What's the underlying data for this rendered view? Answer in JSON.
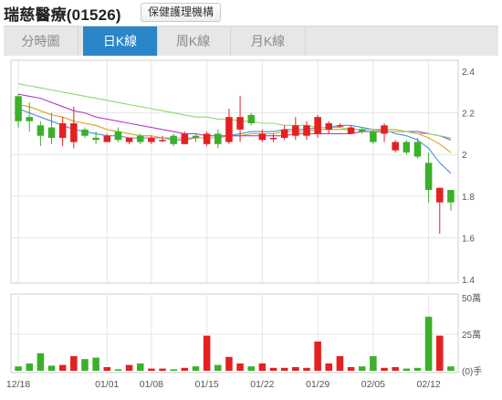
{
  "header": {
    "title": "瑞慈醫療(01526)",
    "tag_label": "保健護理機構"
  },
  "tabs": [
    {
      "label": "分時圖",
      "active": false
    },
    {
      "label": "日K線",
      "active": true
    },
    {
      "label": "周K線",
      "active": false
    },
    {
      "label": "月K線",
      "active": false
    }
  ],
  "colors": {
    "up": "#e52020",
    "down": "#3bb02a",
    "ma5": "#4a8fe0",
    "ma10": "#e0a020",
    "ma20": "#b040d0",
    "ma60": "#8fd86a",
    "grid": "#e4e4e4",
    "frame": "#cfcfcf",
    "axis_text": "#555555"
  },
  "chart_data": [
    {
      "type": "candlestick",
      "ylim": [
        1.4,
        2.4
      ],
      "y_ticks": [
        "2.4",
        "2.2",
        "2",
        "1.8",
        "1.6",
        "1.4"
      ],
      "x_tick_labels": [
        {
          "label": "12/18",
          "index": 0
        },
        {
          "label": "01/01",
          "index": 8
        },
        {
          "label": "01/08",
          "index": 12
        },
        {
          "label": "01/15",
          "index": 17
        },
        {
          "label": "01/22",
          "index": 22
        },
        {
          "label": "01/29",
          "index": 27
        },
        {
          "label": "02/05",
          "index": 32
        },
        {
          "label": "02/12",
          "index": 37
        }
      ],
      "candles": [
        {
          "o": 2.28,
          "h": 2.29,
          "c": 2.16,
          "l": 2.13
        },
        {
          "o": 2.18,
          "h": 2.25,
          "c": 2.16,
          "l": 2.11
        },
        {
          "o": 2.14,
          "h": 2.16,
          "c": 2.09,
          "l": 2.04
        },
        {
          "o": 2.13,
          "h": 2.2,
          "c": 2.08,
          "l": 2.05
        },
        {
          "o": 2.08,
          "h": 2.18,
          "c": 2.15,
          "l": 2.04
        },
        {
          "o": 2.06,
          "h": 2.23,
          "c": 2.15,
          "l": 2.03
        },
        {
          "o": 2.12,
          "h": 2.13,
          "c": 2.09,
          "l": 2.08
        },
        {
          "o": 2.08,
          "h": 2.11,
          "c": 2.07,
          "l": 2.05
        },
        {
          "o": 2.06,
          "h": 2.1,
          "c": 2.09,
          "l": 2.06
        },
        {
          "o": 2.11,
          "h": 2.13,
          "c": 2.07,
          "l": 2.06
        },
        {
          "o": 2.06,
          "h": 2.08,
          "c": 2.08,
          "l": 2.05
        },
        {
          "o": 2.09,
          "h": 2.1,
          "c": 2.06,
          "l": 2.05
        },
        {
          "o": 2.06,
          "h": 2.09,
          "c": 2.08,
          "l": 2.05
        },
        {
          "o": 2.07,
          "h": 2.09,
          "c": 2.07,
          "l": 2.06
        },
        {
          "o": 2.09,
          "h": 2.1,
          "c": 2.05,
          "l": 2.04
        },
        {
          "o": 2.05,
          "h": 2.11,
          "c": 2.1,
          "l": 2.05
        },
        {
          "o": 2.09,
          "h": 2.1,
          "c": 2.08,
          "l": 2.06
        },
        {
          "o": 2.05,
          "h": 2.11,
          "c": 2.1,
          "l": 2.04
        },
        {
          "o": 2.1,
          "h": 2.12,
          "c": 2.05,
          "l": 2.03
        },
        {
          "o": 2.06,
          "h": 2.22,
          "c": 2.18,
          "l": 2.05
        },
        {
          "o": 2.12,
          "h": 2.28,
          "c": 2.18,
          "l": 2.06
        },
        {
          "o": 2.19,
          "h": 2.2,
          "c": 2.15,
          "l": 2.14
        },
        {
          "o": 2.07,
          "h": 2.12,
          "c": 2.1,
          "l": 2.06
        },
        {
          "o": 2.08,
          "h": 2.1,
          "c": 2.08,
          "l": 2.06
        },
        {
          "o": 2.08,
          "h": 2.14,
          "c": 2.12,
          "l": 2.07
        },
        {
          "o": 2.09,
          "h": 2.18,
          "c": 2.14,
          "l": 2.07
        },
        {
          "o": 2.09,
          "h": 2.16,
          "c": 2.14,
          "l": 2.07
        },
        {
          "o": 2.1,
          "h": 2.19,
          "c": 2.18,
          "l": 2.08
        },
        {
          "o": 2.12,
          "h": 2.16,
          "c": 2.15,
          "l": 2.1
        },
        {
          "o": 2.14,
          "h": 2.15,
          "c": 2.14,
          "l": 2.13
        },
        {
          "o": 2.1,
          "h": 2.14,
          "c": 2.13,
          "l": 2.1
        },
        {
          "o": 2.12,
          "h": 2.13,
          "c": 2.11,
          "l": 2.1
        },
        {
          "o": 2.11,
          "h": 2.12,
          "c": 2.06,
          "l": 2.05
        },
        {
          "o": 2.1,
          "h": 2.15,
          "c": 2.14,
          "l": 2.06
        },
        {
          "o": 2.02,
          "h": 2.07,
          "c": 2.06,
          "l": 2.01
        },
        {
          "o": 2.06,
          "h": 2.07,
          "c": 2.01,
          "l": 2.0
        },
        {
          "o": 2.06,
          "h": 2.08,
          "c": 1.99,
          "l": 1.98
        },
        {
          "o": 1.96,
          "h": 2.01,
          "c": 1.83,
          "l": 1.77
        },
        {
          "o": 1.77,
          "h": 1.84,
          "c": 1.84,
          "l": 1.62
        },
        {
          "o": 1.83,
          "h": 1.83,
          "c": 1.77,
          "l": 1.73
        }
      ],
      "ma_lines": [
        {
          "key": "ma5",
          "values": [
            2.22,
            2.2,
            2.18,
            2.16,
            2.14,
            2.12,
            2.11,
            2.1,
            2.09,
            2.09,
            2.08,
            2.08,
            2.08,
            2.08,
            2.07,
            2.07,
            2.08,
            2.08,
            2.08,
            2.09,
            2.1,
            2.11,
            2.11,
            2.11,
            2.12,
            2.12,
            2.12,
            2.13,
            2.13,
            2.14,
            2.14,
            2.13,
            2.12,
            2.12,
            2.1,
            2.09,
            2.07,
            2.03,
            1.96,
            1.91
          ]
        },
        {
          "key": "ma10",
          "values": [
            2.24,
            2.23,
            2.21,
            2.19,
            2.18,
            2.16,
            2.15,
            2.14,
            2.12,
            2.11,
            2.1,
            2.09,
            2.09,
            2.08,
            2.08,
            2.08,
            2.08,
            2.08,
            2.08,
            2.09,
            2.09,
            2.1,
            2.1,
            2.1,
            2.11,
            2.11,
            2.11,
            2.12,
            2.12,
            2.12,
            2.12,
            2.12,
            2.12,
            2.12,
            2.12,
            2.11,
            2.1,
            2.08,
            2.05,
            2.01
          ]
        },
        {
          "key": "ma20",
          "values": [
            2.29,
            2.28,
            2.27,
            2.25,
            2.23,
            2.21,
            2.2,
            2.18,
            2.17,
            2.16,
            2.15,
            2.14,
            2.13,
            2.12,
            2.11,
            2.1,
            2.1,
            2.09,
            2.09,
            2.09,
            2.09,
            2.09,
            2.09,
            2.09,
            2.09,
            2.1,
            2.1,
            2.1,
            2.1,
            2.1,
            2.1,
            2.11,
            2.11,
            2.11,
            2.11,
            2.11,
            2.11,
            2.1,
            2.09,
            2.07
          ]
        },
        {
          "key": "ma60",
          "values": [
            2.34,
            2.33,
            2.32,
            2.31,
            2.3,
            2.29,
            2.28,
            2.27,
            2.26,
            2.25,
            2.24,
            2.23,
            2.22,
            2.21,
            2.2,
            2.19,
            2.18,
            2.18,
            2.17,
            2.17,
            2.16,
            2.16,
            2.15,
            2.15,
            2.14,
            2.14,
            2.14,
            2.13,
            2.13,
            2.13,
            2.12,
            2.12,
            2.12,
            2.11,
            2.11,
            2.11,
            2.1,
            2.1,
            2.09,
            2.08
          ]
        }
      ]
    },
    {
      "type": "bar",
      "unit_label": "(0)手",
      "ylim": [
        0,
        500000
      ],
      "y_ticks": [
        "50萬",
        "25萬",
        "(0)手"
      ],
      "volumes": [
        30000,
        50000,
        120000,
        35000,
        40000,
        100000,
        80000,
        90000,
        25000,
        10000,
        40000,
        50000,
        15000,
        15000,
        10000,
        20000,
        30000,
        240000,
        40000,
        95000,
        50000,
        30000,
        50000,
        20000,
        20000,
        25000,
        20000,
        200000,
        50000,
        100000,
        25000,
        30000,
        100000,
        20000,
        25000,
        15000,
        20000,
        370000,
        240000,
        30000
      ]
    }
  ]
}
